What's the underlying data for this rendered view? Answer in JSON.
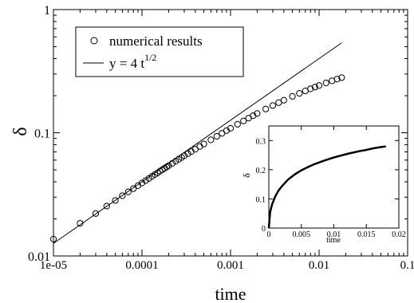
{
  "chart_data": [
    {
      "type": "scatter",
      "xlabel": "time",
      "ylabel": "δ",
      "x_scale": "log",
      "y_scale": "log",
      "xlim": [
        1e-05,
        0.1
      ],
      "ylim": [
        0.01,
        1
      ],
      "x_ticks": [
        "1e-05",
        "0.0001",
        "0.001",
        "0.01",
        "0.1"
      ],
      "y_ticks": [
        "0.01",
        "0.1",
        "1"
      ],
      "grid": false,
      "legend_position": "top-left",
      "series": [
        {
          "name": "numerical results",
          "marker": "open-circle",
          "x": [
            1e-05,
            2e-05,
            3e-05,
            4e-05,
            5e-05,
            6e-05,
            7e-05,
            8e-05,
            9e-05,
            0.0001,
            0.00011,
            0.00012,
            0.00013,
            0.00014,
            0.00015,
            0.00016,
            0.00017,
            0.00018,
            0.00019,
            0.0002,
            0.00022,
            0.00024,
            0.00026,
            0.00028,
            0.0003,
            0.00033,
            0.00036,
            0.0004,
            0.00045,
            0.0005,
            0.0006,
            0.0007,
            0.0008,
            0.0009,
            0.001,
            0.0012,
            0.0014,
            0.0016,
            0.0018,
            0.002,
            0.0025,
            0.003,
            0.0035,
            0.004,
            0.005,
            0.006,
            0.007,
            0.008,
            0.009,
            0.01,
            0.012,
            0.014,
            0.016,
            0.018
          ],
          "y": [
            0.0137,
            0.0184,
            0.0221,
            0.0254,
            0.0282,
            0.0308,
            0.0331,
            0.0352,
            0.0372,
            0.0391,
            0.0409,
            0.0426,
            0.0443,
            0.0458,
            0.0473,
            0.0488,
            0.0502,
            0.0515,
            0.0528,
            0.0541,
            0.0565,
            0.0588,
            0.0609,
            0.063,
            0.065,
            0.0677,
            0.0703,
            0.0735,
            0.0774,
            0.0811,
            0.0876,
            0.0936,
            0.099,
            0.1041,
            0.1088,
            0.1172,
            0.1247,
            0.1314,
            0.1376,
            0.1433,
            0.1559,
            0.1665,
            0.1756,
            0.1837,
            0.1975,
            0.2089,
            0.2187,
            0.2273,
            0.2349,
            0.2418,
            0.2538,
            0.2639,
            0.2726,
            0.2802
          ]
        },
        {
          "name": "y = 4 t",
          "name_superscript": "1/2",
          "marker": "line",
          "x": [
            1e-05,
            0.018
          ],
          "y": [
            0.01265,
            0.5367
          ]
        }
      ]
    },
    {
      "type": "line",
      "xlabel": "time",
      "ylabel": "δ",
      "xlim": [
        0,
        0.02
      ],
      "ylim": [
        0,
        0.35
      ],
      "x_ticks": [
        "0",
        "0.005",
        "0.01",
        "0.015",
        "0.02"
      ],
      "y_ticks": [
        "0",
        "0.1",
        "0.2",
        "0.3"
      ],
      "series": [
        {
          "x": [
            0,
            0.0002,
            0.0005,
            0.001,
            0.0015,
            0.002,
            0.003,
            0.004,
            0.005,
            0.006,
            0.007,
            0.008,
            0.009,
            0.01,
            0.011,
            0.012,
            0.013,
            0.014,
            0.015,
            0.016,
            0.017,
            0.018
          ],
          "y": [
            0,
            0.054,
            0.081,
            0.109,
            0.129,
            0.143,
            0.167,
            0.184,
            0.198,
            0.209,
            0.219,
            0.227,
            0.235,
            0.242,
            0.248,
            0.254,
            0.259,
            0.264,
            0.268,
            0.273,
            0.277,
            0.28
          ]
        }
      ]
    }
  ]
}
